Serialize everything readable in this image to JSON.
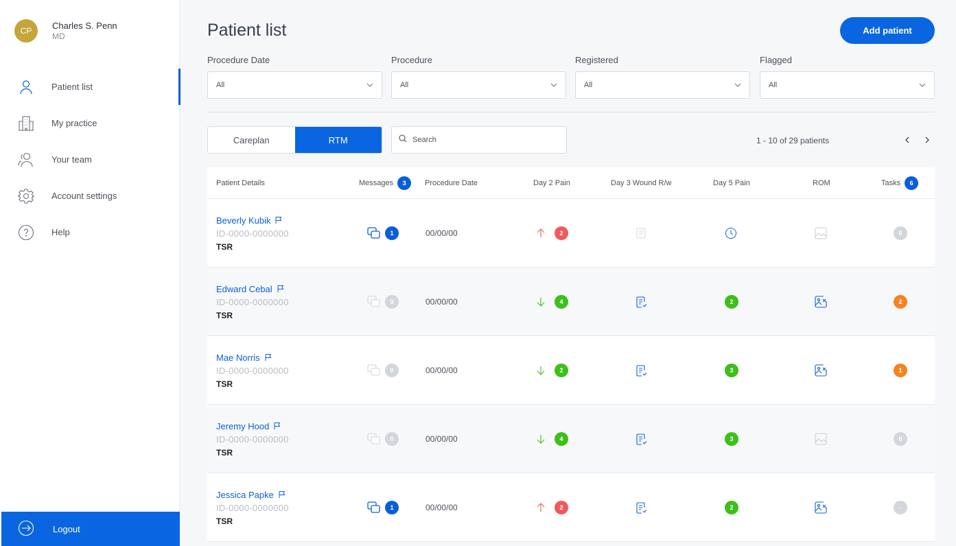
{
  "user": {
    "initials": "CP",
    "name": "Charles S. Penn",
    "role": "MD",
    "avatar_color": "#c5a53a"
  },
  "nav": {
    "items": [
      {
        "label": "Patient list",
        "icon": "user-icon",
        "active": true
      },
      {
        "label": "My practice",
        "icon": "building-icon",
        "active": false
      },
      {
        "label": "Your team",
        "icon": "team-icon",
        "active": false
      },
      {
        "label": "Account settings",
        "icon": "gear-icon",
        "active": false
      },
      {
        "label": "Help",
        "icon": "help-icon",
        "active": false
      }
    ],
    "logout_label": "Logout"
  },
  "header": {
    "title": "Patient list",
    "add_button": "Add patient"
  },
  "filters": [
    {
      "label": "Procedure Date",
      "value": "All"
    },
    {
      "label": "Procedure",
      "value": "All"
    },
    {
      "label": "Registered",
      "value": "All"
    },
    {
      "label": "Flagged",
      "value": "All"
    }
  ],
  "tabs": {
    "careplan": "Careplan",
    "rtm": "RTM",
    "active": "RTM"
  },
  "search": {
    "placeholder": "Search",
    "value": ""
  },
  "pagination": {
    "text": "1 - 10 of 29 patients",
    "prev": "‹",
    "next": "›"
  },
  "table": {
    "headers": {
      "patient": "Patient Details",
      "messages": "Messages",
      "messages_count": "3",
      "procedure_date": "Procedure Date",
      "day2": "Day 2 Pain",
      "day3": "Day 3 Wound R/w",
      "day5": "Day 5 Pain",
      "rom": "ROM",
      "tasks": "Tasks",
      "tasks_count": "6"
    },
    "rows": [
      {
        "name": "Beverly Kubik",
        "id": "ID-0000-0000000",
        "tag": "TSR",
        "messages": "1",
        "messages_active": true,
        "date": "00/00/00",
        "day2_trend": "up",
        "day2_value": "2",
        "day2_color": "red",
        "day3": "pending",
        "day5": "clock",
        "day5_value": "",
        "rom": "pending",
        "tasks": "0",
        "tasks_color": "grey"
      },
      {
        "name": "Edward Cebal",
        "id": "ID-0000-0000000",
        "tag": "TSR",
        "messages": "0",
        "messages_active": false,
        "date": "00/00/00",
        "day2_trend": "down",
        "day2_value": "4",
        "day2_color": "green",
        "day3": "done",
        "day5": "value",
        "day5_value": "2",
        "rom": "done",
        "tasks": "2",
        "tasks_color": "orange"
      },
      {
        "name": "Mae Norris",
        "id": "ID-0000-0000000",
        "tag": "TSR",
        "messages": "0",
        "messages_active": false,
        "date": "00/00/00",
        "day2_trend": "down",
        "day2_value": "2",
        "day2_color": "green",
        "day3": "done",
        "day5": "value",
        "day5_value": "3",
        "rom": "done",
        "tasks": "1",
        "tasks_color": "orange"
      },
      {
        "name": "Jeremy Hood",
        "id": "ID-0000-0000000",
        "tag": "TSR",
        "messages": "0",
        "messages_active": false,
        "date": "00/00/00",
        "day2_trend": "down",
        "day2_value": "4",
        "day2_color": "green",
        "day3": "done",
        "day5": "value",
        "day5_value": "3",
        "rom": "pending",
        "tasks": "0",
        "tasks_color": "grey"
      },
      {
        "name": "Jessica Papke",
        "id": "ID-0000-0000000",
        "tag": "TSR",
        "messages": "1",
        "messages_active": true,
        "date": "00/00/00",
        "day2_trend": "up",
        "day2_value": "2",
        "day2_color": "red",
        "day3": "done",
        "day5": "value",
        "day5_value": "2",
        "rom": "done",
        "tasks": "-",
        "tasks_color": "grey"
      }
    ]
  },
  "colors": {
    "primary": "#0a66e0",
    "red": "#f05a5a",
    "green": "#3ebf1a",
    "orange": "#f5841f",
    "grey": "#d3d7dc"
  }
}
